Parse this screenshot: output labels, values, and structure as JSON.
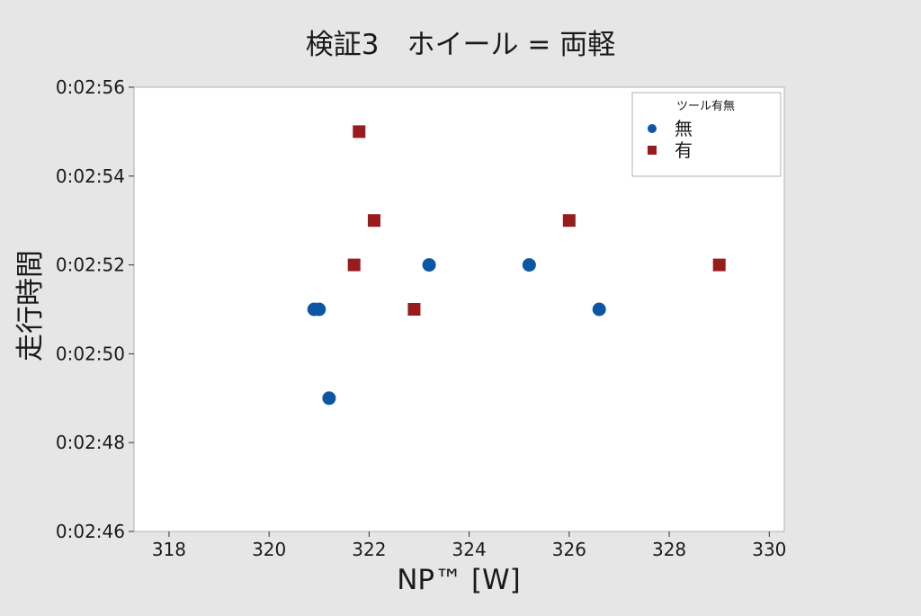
{
  "chart_data": {
    "type": "scatter",
    "title": "検証3　ホイール = 両軽",
    "xlabel": "NP™ [W]",
    "ylabel": "走行時間",
    "xlim": [
      317.3,
      330.3
    ],
    "ylim": [
      166,
      176
    ],
    "x_ticks": [
      318,
      320,
      322,
      324,
      326,
      328,
      330
    ],
    "y_ticks": [
      {
        "value": 166,
        "label": "0:02:46"
      },
      {
        "value": 168,
        "label": "0:02:48"
      },
      {
        "value": 170,
        "label": "0:02:50"
      },
      {
        "value": 172,
        "label": "0:02:52"
      },
      {
        "value": 174,
        "label": "0:02:54"
      },
      {
        "value": 176,
        "label": "0:02:56"
      }
    ],
    "grid": false,
    "legend": {
      "title": "ツール有無",
      "placement": "top-right"
    },
    "series": [
      {
        "name": "無",
        "marker": "circle",
        "color": "#0d56a6",
        "points": [
          {
            "x": 320.9,
            "y": "0:02:51",
            "y_seconds": 171
          },
          {
            "x": 321.0,
            "y": "0:02:51",
            "y_seconds": 171
          },
          {
            "x": 321.2,
            "y": "0:02:49",
            "y_seconds": 169
          },
          {
            "x": 323.2,
            "y": "0:02:52",
            "y_seconds": 172
          },
          {
            "x": 325.2,
            "y": "0:02:52",
            "y_seconds": 172
          },
          {
            "x": 326.6,
            "y": "0:02:51",
            "y_seconds": 171
          }
        ]
      },
      {
        "name": "有",
        "marker": "square",
        "color": "#981b1e",
        "points": [
          {
            "x": 321.7,
            "y": "0:02:52",
            "y_seconds": 172
          },
          {
            "x": 321.8,
            "y": "0:02:55",
            "y_seconds": 175
          },
          {
            "x": 322.1,
            "y": "0:02:53",
            "y_seconds": 173
          },
          {
            "x": 322.9,
            "y": "0:02:51",
            "y_seconds": 171
          },
          {
            "x": 326.0,
            "y": "0:02:53",
            "y_seconds": 173
          },
          {
            "x": 329.0,
            "y": "0:02:52",
            "y_seconds": 172
          }
        ]
      }
    ]
  }
}
